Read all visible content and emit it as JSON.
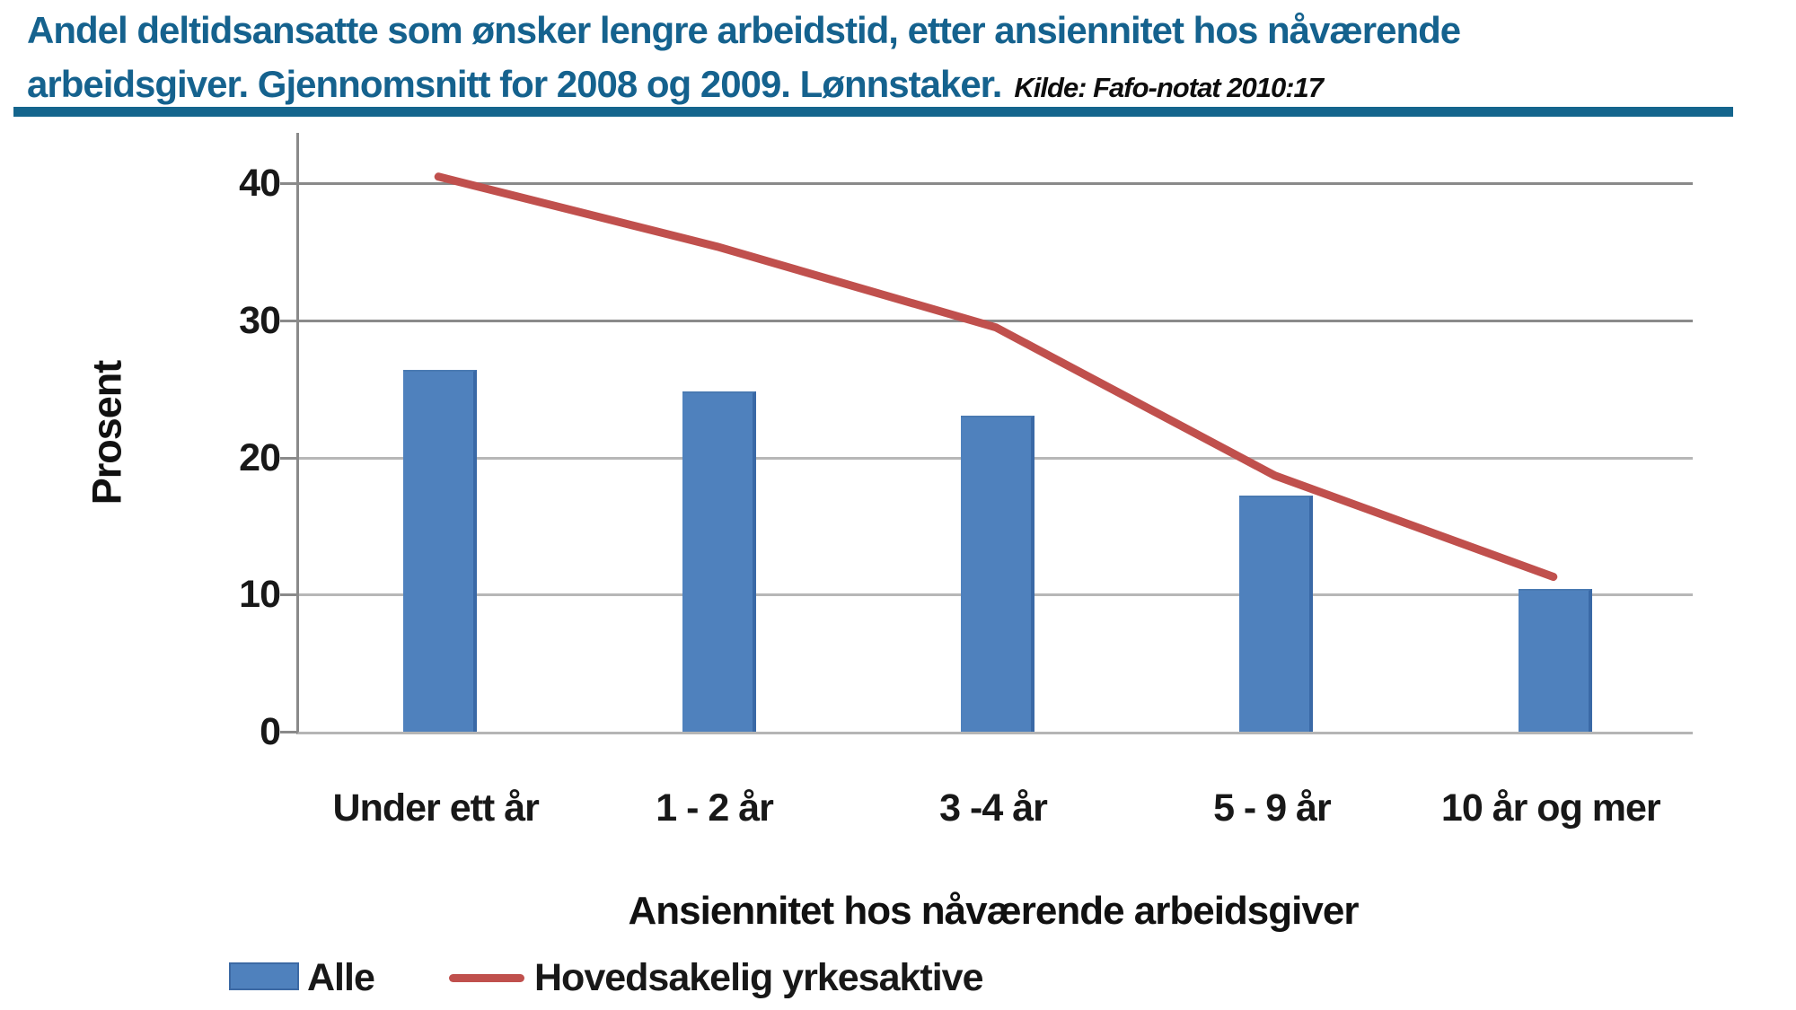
{
  "header": {
    "title_line1": "Andel deltidsansatte som ønsker lengre arbeidstid, etter ansiennitet hos nåværende",
    "title_line2": "arbeidsgiver. Gjennomsnitt for 2008 og 2009. Lønnstaker.",
    "source_note": "Kilde: Fafo-notat 2010:17",
    "title_color": "#15628e",
    "rule_color": "#14658d"
  },
  "chart_data": {
    "type": "bar+line",
    "categories": [
      "Under ett år",
      "1 - 2 år",
      "3 -4 år",
      "5 - 9 år",
      "10 år og mer"
    ],
    "series": [
      {
        "name": "Alle",
        "type": "bar",
        "color": "#4f81bd",
        "values": [
          26.3,
          24.7,
          22.9,
          17.1,
          10.3
        ]
      },
      {
        "name": "Hovedsakelig yrkesaktive",
        "type": "line",
        "color": "#c0504d",
        "values": [
          40.5,
          35.4,
          29.5,
          18.7,
          11.3
        ]
      }
    ],
    "xlabel": "Ansiennitet hos nåværende arbeidsgiver",
    "ylabel": "Prosent",
    "yticks": [
      0,
      10,
      20,
      30,
      40
    ],
    "ylim": [
      0,
      43.7
    ],
    "grid": true,
    "legend_position": "bottom-left"
  }
}
